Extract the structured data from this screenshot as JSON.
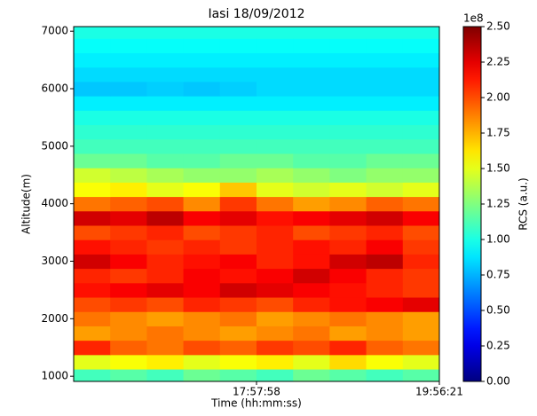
{
  "chart_data": {
    "type": "heatmap",
    "title": "Iasi 18/09/2012",
    "x_label": "Time (hh:mm:ss)",
    "y_label": "Altitude(m)",
    "colorbar_label": "RCS (a.u.)",
    "colorbar_offset": "1e8",
    "colormap": "jet",
    "x": [
      58285,
      59706,
      61126,
      62547,
      63967,
      65388,
      66809,
      68229,
      69650,
      71070
    ],
    "y": [
      1000,
      1250,
      1500,
      1750,
      2000,
      2250,
      2500,
      2750,
      3000,
      3250,
      3500,
      3750,
      4000,
      4250,
      4500,
      4750,
      5000,
      5250,
      5500,
      5750,
      6000,
      6250,
      6500,
      6750,
      7000
    ],
    "values": [
      [
        1.1,
        1.15,
        1.1,
        1.2,
        1.15,
        1.1,
        1.2,
        1.15,
        1.1,
        1.15
      ],
      [
        1.5,
        1.55,
        1.6,
        1.5,
        1.55,
        1.6,
        1.5,
        1.65,
        1.55,
        1.5
      ],
      [
        2.1,
        1.95,
        1.9,
        2.0,
        1.95,
        2.05,
        2.0,
        2.1,
        1.95,
        1.9
      ],
      [
        1.8,
        1.85,
        1.9,
        1.85,
        1.8,
        1.85,
        1.9,
        1.8,
        1.85,
        1.8
      ],
      [
        1.9,
        1.85,
        1.8,
        1.85,
        1.9,
        1.8,
        1.85,
        1.9,
        1.85,
        1.8
      ],
      [
        2.0,
        2.05,
        2.0,
        2.1,
        2.05,
        2.0,
        2.1,
        2.15,
        2.2,
        2.25
      ],
      [
        2.15,
        2.2,
        2.25,
        2.2,
        2.3,
        2.25,
        2.2,
        2.15,
        2.1,
        2.05
      ],
      [
        2.1,
        2.05,
        2.1,
        2.2,
        2.15,
        2.2,
        2.3,
        2.2,
        2.1,
        2.05
      ],
      [
        2.3,
        2.2,
        2.1,
        2.15,
        2.2,
        2.1,
        2.15,
        2.3,
        2.35,
        2.1
      ],
      [
        2.15,
        2.1,
        2.05,
        2.1,
        2.05,
        2.1,
        2.15,
        2.1,
        2.2,
        2.05
      ],
      [
        2.0,
        2.05,
        2.1,
        2.0,
        2.05,
        2.1,
        2.0,
        2.05,
        2.1,
        2.0
      ],
      [
        2.3,
        2.25,
        2.35,
        2.2,
        2.25,
        2.15,
        2.2,
        2.25,
        2.3,
        2.2
      ],
      [
        1.9,
        1.95,
        2.0,
        1.85,
        2.05,
        1.9,
        1.8,
        1.85,
        1.95,
        1.9
      ],
      [
        1.55,
        1.6,
        1.5,
        1.55,
        1.7,
        1.5,
        1.45,
        1.5,
        1.45,
        1.5
      ],
      [
        1.45,
        1.4,
        1.35,
        1.3,
        1.3,
        1.35,
        1.3,
        1.25,
        1.3,
        1.3
      ],
      [
        1.2,
        1.2,
        1.15,
        1.15,
        1.2,
        1.2,
        1.15,
        1.15,
        1.2,
        1.2
      ],
      [
        1.1,
        1.1,
        1.1,
        1.1,
        1.1,
        1.1,
        1.1,
        1.1,
        1.1,
        1.1
      ],
      [
        1.05,
        1.05,
        1.05,
        1.05,
        1.05,
        1.05,
        1.05,
        1.05,
        1.05,
        1.05
      ],
      [
        1.0,
        1.0,
        1.0,
        1.0,
        1.0,
        1.0,
        1.0,
        1.0,
        1.0,
        1.0
      ],
      [
        0.9,
        0.9,
        0.9,
        0.9,
        0.9,
        0.9,
        0.9,
        0.9,
        0.9,
        0.9
      ],
      [
        0.8,
        0.8,
        0.82,
        0.8,
        0.82,
        0.85,
        0.85,
        0.85,
        0.85,
        0.85
      ],
      [
        0.85,
        0.85,
        0.85,
        0.85,
        0.85,
        0.85,
        0.85,
        0.85,
        0.85,
        0.85
      ],
      [
        0.9,
        0.9,
        0.9,
        0.9,
        0.9,
        0.9,
        0.9,
        0.9,
        0.9,
        0.9
      ],
      [
        0.95,
        0.95,
        0.95,
        0.95,
        0.95,
        0.95,
        0.95,
        0.95,
        0.95,
        0.95
      ],
      [
        1.0,
        1.0,
        1.0,
        1.0,
        1.0,
        1.0,
        1.0,
        1.0,
        1.0,
        1.0
      ]
    ],
    "xlim": [
      57575,
      71781
    ],
    "xticks": [
      {
        "value": 64678,
        "label": "17:57:58"
      },
      {
        "value": 71781,
        "label": "19:56:21"
      }
    ],
    "ylim": [
      910,
      7080
    ],
    "yticks": [
      1000,
      2000,
      3000,
      4000,
      5000,
      6000,
      7000
    ],
    "clim": [
      0,
      2.5
    ],
    "cticks": [
      {
        "value": 0,
        "label": "0.00"
      },
      {
        "value": 0.25,
        "label": "0.25"
      },
      {
        "value": 0.5,
        "label": "0.50"
      },
      {
        "value": 0.75,
        "label": "0.75"
      },
      {
        "value": 1,
        "label": "1.00"
      },
      {
        "value": 1.25,
        "label": "1.25"
      },
      {
        "value": 1.5,
        "label": "1.50"
      },
      {
        "value": 1.75,
        "label": "1.75"
      },
      {
        "value": 2,
        "label": "2.00"
      },
      {
        "value": 2.25,
        "label": "2.25"
      },
      {
        "value": 2.5,
        "label": "2.50"
      }
    ]
  }
}
